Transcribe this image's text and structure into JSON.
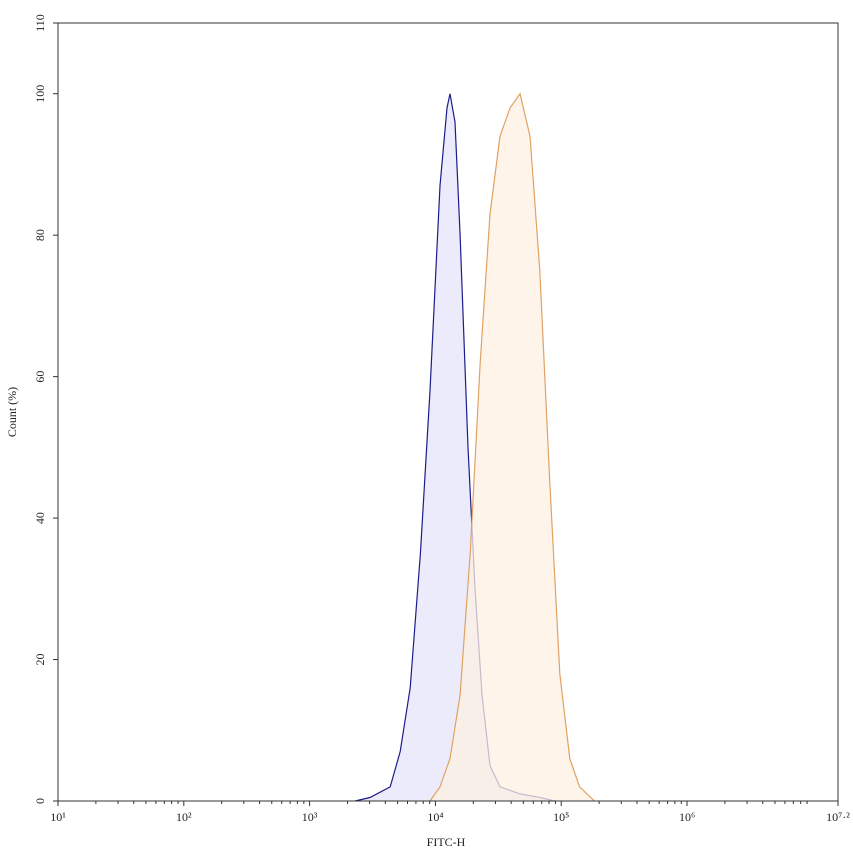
{
  "chart_data": {
    "type": "histogram-overlay",
    "x_label": "FITC-H",
    "y_label": "Count (%)",
    "log_x": true,
    "xlim": [
      10,
      15848931.92
    ],
    "xticks": [
      {
        "value": 10,
        "label": "10¹"
      },
      {
        "value": 100,
        "label": "10²"
      },
      {
        "value": 1000,
        "label": "10³"
      },
      {
        "value": 10000,
        "label": "10⁴"
      },
      {
        "value": 100000,
        "label": "10⁵"
      },
      {
        "value": 1000000,
        "label": "10⁶"
      },
      {
        "value": 15848931.92,
        "label": "10⁷·²"
      }
    ],
    "ylim": [
      0,
      110
    ],
    "yticks": [
      0,
      20,
      40,
      60,
      80,
      100,
      110
    ],
    "series": [
      {
        "color": "#1c1c8a",
        "fill": "#e4e4fa",
        "x": [
          2300,
          3020,
          4370,
          5250,
          6300,
          7590,
          9060,
          10870,
          12360,
          13060,
          14320,
          15700,
          18160,
          20650,
          23460,
          27150,
          32600,
          47000,
          67600,
          89000
        ],
        "values": [
          0,
          0.5,
          2,
          7,
          16,
          35,
          58,
          87,
          98,
          100,
          96,
          80,
          50,
          30,
          15,
          5,
          2,
          1,
          0.5,
          0
        ]
      },
      {
        "color": "#e0a262",
        "fill": "#fdf0e3",
        "x": [
          9060,
          10870,
          13060,
          15700,
          18890,
          22700,
          27150,
          32600,
          39200,
          47000,
          56500,
          67600,
          81100,
          97500,
          117000,
          140000,
          184000
        ],
        "values": [
          0,
          2,
          6,
          15,
          35,
          62,
          83,
          94,
          98,
          100,
          94,
          75,
          45,
          18,
          6,
          2,
          0
        ]
      }
    ]
  }
}
